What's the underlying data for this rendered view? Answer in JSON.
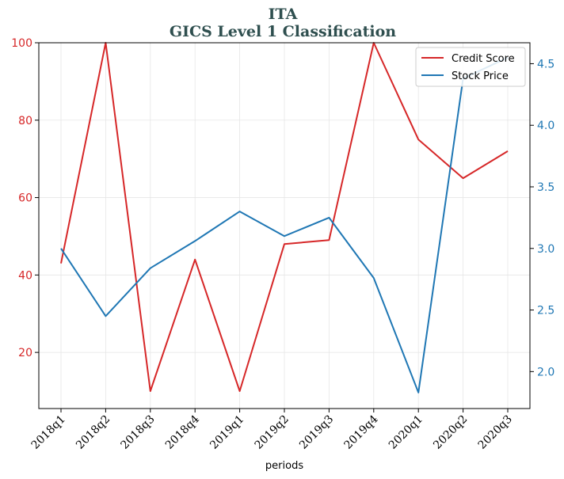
{
  "chart_data": {
    "type": "line",
    "title": "ITA",
    "subtitle": "GICS Level 1 Classification",
    "xlabel": "periods",
    "categories": [
      "2018q1",
      "2018q2",
      "2018q3",
      "2018q4",
      "2019q1",
      "2019q2",
      "2019q3",
      "2019q4",
      "2020q1",
      "2020q2",
      "2020q3"
    ],
    "series": [
      {
        "name": "Credit Score",
        "axis": "left",
        "color": "#d62728",
        "values": [
          43,
          100,
          10,
          44,
          10,
          48,
          49,
          100,
          75,
          65,
          72
        ]
      },
      {
        "name": "Stock Price",
        "axis": "right",
        "color": "#1f77b4",
        "values": [
          3.0,
          2.45,
          2.84,
          3.06,
          3.3,
          3.1,
          3.25,
          2.76,
          1.83,
          4.38,
          4.55
        ]
      }
    ],
    "y_left": {
      "ylim": [
        5.5,
        100
      ],
      "ticks": [
        20,
        40,
        60,
        80,
        100
      ],
      "tick_color": "#d62728"
    },
    "y_right": {
      "ylim": [
        1.7,
        4.67
      ],
      "ticks": [
        2.0,
        2.5,
        3.0,
        3.5,
        4.0,
        4.5
      ],
      "tick_labels": [
        "2.0",
        "2.5",
        "3.0",
        "3.5",
        "4.0",
        "4.5"
      ],
      "tick_color": "#1f77b4"
    },
    "grid": true,
    "legend": "top-right"
  }
}
